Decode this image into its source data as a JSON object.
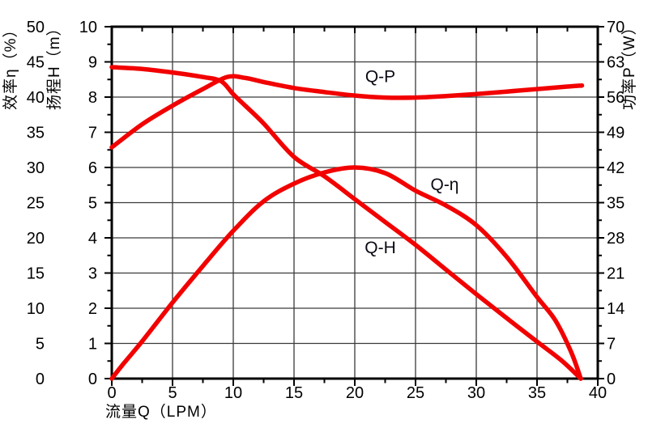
{
  "chart_data": {
    "type": "line",
    "title": "",
    "grid": true,
    "legend_position": "inline-curve-labels",
    "curve_color": "#f20000",
    "frame_color": "#000000",
    "grid_color": "#3a3a3a",
    "x_axis": {
      "label": "流量Q（LPM）",
      "min": 0,
      "max": 40,
      "major_step": 5,
      "minor_step": 2.5,
      "tick_labels": [
        "0",
        "5",
        "10",
        "15",
        "20",
        "25",
        "30",
        "35",
        "40"
      ]
    },
    "y_axis_efficiency": {
      "label": "效率η（%）",
      "min": 0,
      "max": 50,
      "major_step": 5,
      "tick_labels": [
        "0",
        "5",
        "10",
        "15",
        "20",
        "25",
        "30",
        "35",
        "40",
        "45",
        "50"
      ]
    },
    "y_axis_head": {
      "label": "扬程H（m）",
      "min": 0,
      "max": 10,
      "major_step": 1,
      "minor_step": 0.5,
      "tick_labels": [
        "0",
        "1",
        "2",
        "3",
        "4",
        "5",
        "6",
        "7",
        "8",
        "9",
        "10"
      ]
    },
    "y_axis_power": {
      "label": "功率P（W）",
      "min": 0,
      "max": 70,
      "major_step": 7,
      "minor_step": 3.5,
      "tick_labels": [
        "0",
        "7",
        "14",
        "21",
        "28",
        "35",
        "42",
        "49",
        "56",
        "63",
        "70"
      ]
    },
    "series": [
      {
        "id": "q-h",
        "name": "Q-H",
        "axis": "head",
        "unit": "m",
        "label_anchor": {
          "q": 22.1,
          "v": 3.72
        },
        "points": [
          [
            0,
            8.85
          ],
          [
            2.5,
            8.8
          ],
          [
            5,
            8.7
          ],
          [
            7.5,
            8.57
          ],
          [
            9,
            8.45
          ],
          [
            10,
            8.08
          ],
          [
            11,
            7.75
          ],
          [
            12.5,
            7.25
          ],
          [
            15,
            6.3
          ],
          [
            17.5,
            5.75
          ],
          [
            20,
            5.1
          ],
          [
            22.5,
            4.45
          ],
          [
            25,
            3.8
          ],
          [
            27.5,
            3.1
          ],
          [
            30,
            2.4
          ],
          [
            32.5,
            1.72
          ],
          [
            35,
            1.05
          ],
          [
            37,
            0.52
          ],
          [
            38.6,
            0
          ]
        ]
      },
      {
        "id": "q-eta",
        "name": "Q-η",
        "axis": "efficiency",
        "unit": "%",
        "label_anchor": {
          "q": 27.4,
          "v": 27.6
        },
        "points": [
          [
            0,
            0
          ],
          [
            1,
            2.2
          ],
          [
            2.5,
            5.3
          ],
          [
            5,
            10.8
          ],
          [
            7.5,
            16.0
          ],
          [
            10,
            21.0
          ],
          [
            12.5,
            25.2
          ],
          [
            15,
            27.7
          ],
          [
            17.5,
            29.3
          ],
          [
            20,
            30.0
          ],
          [
            22.5,
            29.2
          ],
          [
            25,
            26.7
          ],
          [
            27.5,
            24.6
          ],
          [
            30,
            21.8
          ],
          [
            32.5,
            17.3
          ],
          [
            35,
            11.6
          ],
          [
            36.5,
            8.3
          ],
          [
            37.8,
            3.8
          ],
          [
            38.6,
            0
          ]
        ]
      },
      {
        "id": "q-p",
        "name": "Q-P",
        "axis": "power",
        "unit": "W",
        "label_anchor": {
          "q": 22.1,
          "v": 60.1
        },
        "points": [
          [
            0,
            46.0
          ],
          [
            2.5,
            50.6
          ],
          [
            5,
            54.3
          ],
          [
            7.5,
            57.6
          ],
          [
            9.5,
            60.0
          ],
          [
            11,
            59.8
          ],
          [
            12.5,
            59.0
          ],
          [
            15,
            57.8
          ],
          [
            17.5,
            57.0
          ],
          [
            20,
            56.3
          ],
          [
            22.5,
            55.9
          ],
          [
            25,
            55.9
          ],
          [
            27.5,
            56.2
          ],
          [
            30,
            56.6
          ],
          [
            32.5,
            57.1
          ],
          [
            35,
            57.6
          ],
          [
            37,
            58.0
          ],
          [
            38.7,
            58.3
          ]
        ]
      }
    ]
  }
}
